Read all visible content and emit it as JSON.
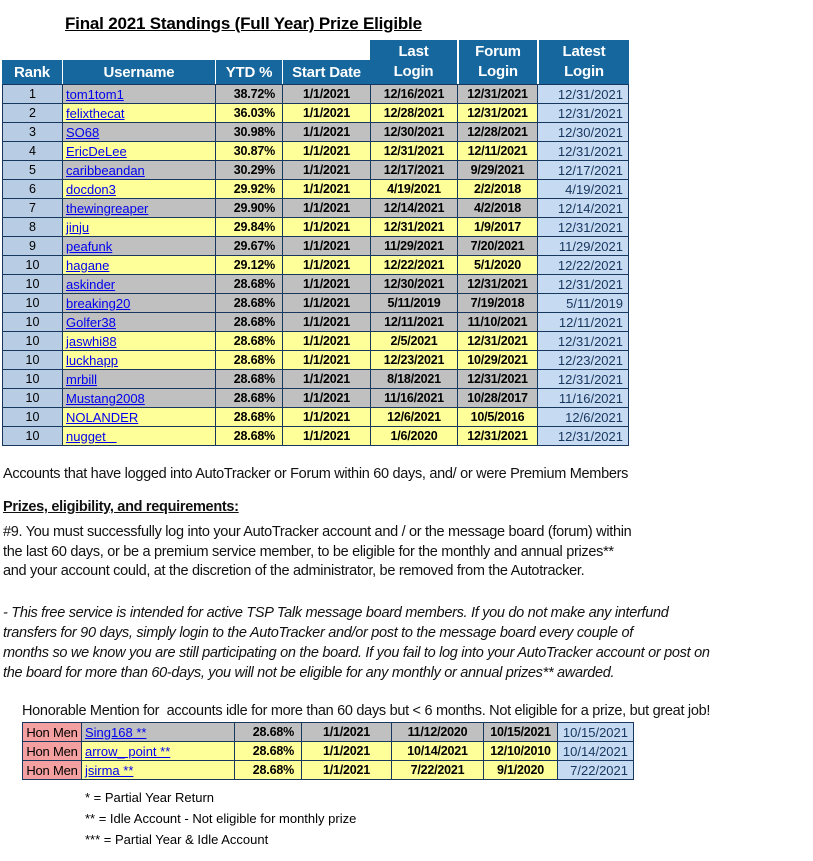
{
  "page_title": "Final 2021 Standings (Full Year) Prize Eligible",
  "colors": {
    "header_blue": "#16679E",
    "border": "#17375E",
    "row_gray": "#C0C0C0",
    "row_yellow": "#FFFF99",
    "rank_blue": "#B8CCE4",
    "latest_blue": "#C6DAF2",
    "hon_pink": "#F5A0A0",
    "link_blue": "#0000EE",
    "navy_text": "#17365D"
  },
  "standings": {
    "headers": {
      "rank": "Rank",
      "username": "Username",
      "ytd": "YTD %",
      "start_date": "Start Date",
      "last_login": [
        "Last",
        "Login"
      ],
      "forum_login": [
        "Forum",
        "Login"
      ],
      "latest_login": [
        "Latest",
        "Login"
      ]
    },
    "rows": [
      {
        "rank": "1",
        "username": "tom1tom1",
        "ytd": "38.72%",
        "start": "1/1/2021",
        "last": "12/16/2021",
        "forum": "12/31/2021",
        "latest": "12/31/2021",
        "shade": "gray"
      },
      {
        "rank": "2",
        "username": "felixthecat",
        "ytd": "36.03%",
        "start": "1/1/2021",
        "last": "12/28/2021",
        "forum": "12/31/2021",
        "latest": "12/31/2021",
        "shade": "yellow"
      },
      {
        "rank": "3",
        "username": "SO68",
        "ytd": "30.98%",
        "start": "1/1/2021",
        "last": "12/30/2021",
        "forum": "12/28/2021",
        "latest": "12/30/2021",
        "shade": "gray"
      },
      {
        "rank": "4",
        "username": "EricDeLee",
        "ytd": "30.87%",
        "start": "1/1/2021",
        "last": "12/31/2021",
        "forum": "12/11/2021",
        "latest": "12/31/2021",
        "shade": "yellow"
      },
      {
        "rank": "5",
        "username": "caribbeandan",
        "ytd": "30.29%",
        "start": "1/1/2021",
        "last": "12/17/2021",
        "forum": "9/29/2021",
        "latest": "12/17/2021",
        "shade": "gray"
      },
      {
        "rank": "6",
        "username": "docdon3",
        "ytd": "29.92%",
        "start": "1/1/2021",
        "last": "4/19/2021",
        "forum": "2/2/2018",
        "latest": "4/19/2021",
        "shade": "yellow"
      },
      {
        "rank": "7",
        "username": "thewingreaper",
        "ytd": "29.90%",
        "start": "1/1/2021",
        "last": "12/14/2021",
        "forum": "4/2/2018",
        "latest": "12/14/2021",
        "shade": "gray"
      },
      {
        "rank": "8",
        "username": "jinju",
        "ytd": "29.84%",
        "start": "1/1/2021",
        "last": "12/31/2021",
        "forum": "1/9/2017",
        "latest": "12/31/2021",
        "shade": "yellow"
      },
      {
        "rank": "9",
        "username": "peafunk",
        "ytd": "29.67%",
        "start": "1/1/2021",
        "last": "11/29/2021",
        "forum": "7/20/2021",
        "latest": "11/29/2021",
        "shade": "gray"
      },
      {
        "rank": "10",
        "username": "hagane",
        "ytd": "29.12%",
        "start": "1/1/2021",
        "last": "12/22/2021",
        "forum": "5/1/2020",
        "latest": "12/22/2021",
        "shade": "yellow"
      },
      {
        "rank": "10",
        "username": "askinder",
        "ytd": "28.68%",
        "start": "1/1/2021",
        "last": "12/30/2021",
        "forum": "12/31/2021",
        "latest": "12/31/2021",
        "shade": "gray"
      },
      {
        "rank": "10",
        "username": "breaking20",
        "ytd": "28.68%",
        "start": "1/1/2021",
        "last": "5/11/2019",
        "forum": "7/19/2018",
        "latest": "5/11/2019",
        "shade": "gray"
      },
      {
        "rank": "10",
        "username": "Golfer38",
        "ytd": "28.68%",
        "start": "1/1/2021",
        "last": "12/11/2021",
        "forum": "11/10/2021",
        "latest": "12/11/2021",
        "shade": "gray"
      },
      {
        "rank": "10",
        "username": "jaswhi88",
        "ytd": "28.68%",
        "start": "1/1/2021",
        "last": "2/5/2021",
        "forum": "12/31/2021",
        "latest": "12/31/2021",
        "shade": "yellow"
      },
      {
        "rank": "10",
        "username": "luckhapp",
        "ytd": "28.68%",
        "start": "1/1/2021",
        "last": "12/23/2021",
        "forum": "10/29/2021",
        "latest": "12/23/2021",
        "shade": "yellow"
      },
      {
        "rank": "10",
        "username": "mrbill",
        "ytd": "28.68%",
        "start": "1/1/2021",
        "last": "8/18/2021",
        "forum": "12/31/2021",
        "latest": "12/31/2021",
        "shade": "gray"
      },
      {
        "rank": "10",
        "username": "Mustang2008",
        "ytd": "28.68%",
        "start": "1/1/2021",
        "last": "11/16/2021",
        "forum": "10/28/2017",
        "latest": "11/16/2021",
        "shade": "gray"
      },
      {
        "rank": "10",
        "username": "NOLANDER",
        "ytd": "28.68%",
        "start": "1/1/2021",
        "last": "12/6/2021",
        "forum": "10/5/2016",
        "latest": "12/6/2021",
        "shade": "yellow"
      },
      {
        "rank": "10",
        "username": "nugget   ",
        "ytd": "28.68%",
        "start": "1/1/2021",
        "last": "1/6/2020",
        "forum": "12/31/2021",
        "latest": "12/31/2021",
        "shade": "yellow"
      }
    ]
  },
  "eligibility_note": "Accounts that have logged into AutoTracker or Forum within 60 days, and/ or were Premium Members",
  "prizes": {
    "heading": "Prizes, eligibility, and requirements:",
    "lines": [
      "#9. You must successfully log into your AutoTracker account and / or the message board (forum) within",
      "the last 60 days, or be a premium service member, to be eligible for the monthly and annual prizes**",
      "and your account could, at the discretion of the administrator, be removed from the Autotracker."
    ]
  },
  "disclaimer_lines": [
    "-  This free service is intended for active TSP Talk message board members. If you do not make any interfund",
    "transfers for 90 days, simply login to the AutoTracker and/or post to the message board every couple of",
    "months so we know you are still participating on the board. If you fail to log into your AutoTracker account or post on",
    "the board for more than 60-days, you will not be eligible for any monthly or annual prizes** awarded."
  ],
  "honorable": {
    "heading": "Honorable Mention for  accounts idle for more than 60 days but < 6 months. Not eligible for a prize, but great job!",
    "rows": [
      {
        "label": "Hon Men",
        "username": "Sing168 **",
        "ytd": "28.68%",
        "start": "1/1/2021",
        "last": "11/12/2020",
        "forum": "10/15/2021",
        "latest": "10/15/2021",
        "shade": "gray"
      },
      {
        "label": "Hon Men",
        "username": "arrow_ point **",
        "ytd": "28.68%",
        "start": "1/1/2021",
        "last": "10/14/2021",
        "forum": "12/10/2010",
        "latest": "10/14/2021",
        "shade": "yellow"
      },
      {
        "label": "Hon Men",
        "username": "jsirma **",
        "ytd": "28.68%",
        "start": "1/1/2021",
        "last": "7/22/2021",
        "forum": "9/1/2020",
        "latest": "7/22/2021",
        "shade": "yellow"
      }
    ]
  },
  "footnotes": [
    "* = Partial Year Return",
    "** = Idle Account - Not eligible for monthly prize",
    "*** = Partial Year & Idle Account"
  ]
}
